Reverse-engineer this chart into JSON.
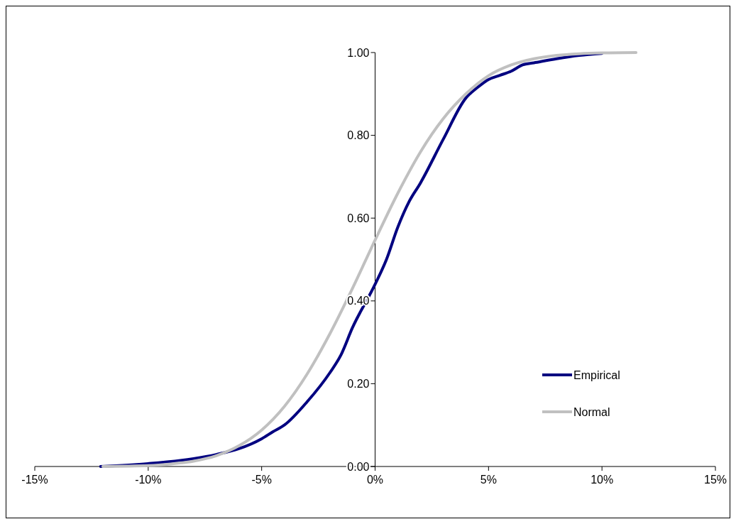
{
  "chart_data": {
    "type": "line",
    "xlim": [
      -15,
      15
    ],
    "ylim": [
      0,
      1
    ],
    "xticks": [
      {
        "value": -15,
        "label": "-15%"
      },
      {
        "value": -10,
        "label": "-10%"
      },
      {
        "value": -5,
        "label": "-5%"
      },
      {
        "value": 0,
        "label": "0%"
      },
      {
        "value": 5,
        "label": "5%"
      },
      {
        "value": 10,
        "label": "10%"
      },
      {
        "value": 15,
        "label": "15%"
      }
    ],
    "yticks": [
      {
        "value": 0,
        "label": "0.00"
      },
      {
        "value": 0.2,
        "label": "0.20"
      },
      {
        "value": 0.4,
        "label": "0.40"
      },
      {
        "value": 0.6,
        "label": "0.60"
      },
      {
        "value": 0.8,
        "label": "0.80"
      },
      {
        "value": 1,
        "label": "1.00"
      }
    ],
    "grid": false,
    "legend": "bottom right",
    "marker": "none",
    "line_style": "solid",
    "series": [
      {
        "name": "Empirical",
        "color": "#000080",
        "x": [
          -12.1,
          -10,
          -8,
          -7,
          -6,
          -5,
          -4.5,
          -4,
          -3,
          -2,
          -1.5,
          -1,
          0,
          0.5,
          1,
          1.5,
          2,
          3,
          4,
          4.5,
          5,
          5.5,
          6,
          6.5,
          7,
          8,
          9,
          10
        ],
        "values": [
          0,
          0.007,
          0.019,
          0.029,
          0.043,
          0.067,
          0.084,
          0.1,
          0.156,
          0.226,
          0.27,
          0.335,
          0.44,
          0.5,
          0.578,
          0.64,
          0.685,
          0.79,
          0.89,
          0.915,
          0.935,
          0.945,
          0.955,
          0.97,
          0.975,
          0.985,
          0.993,
          0.998
        ]
      },
      {
        "name": "Normal",
        "color": "#c0c0c0",
        "x": [
          -12,
          -10,
          -9,
          -8,
          -7,
          -6,
          -5,
          -4,
          -3,
          -2,
          -1,
          0,
          1,
          2,
          3,
          4,
          5,
          6,
          7,
          8,
          9,
          10,
          11.5
        ],
        "values": [
          0,
          0.002,
          0.006,
          0.013,
          0.026,
          0.05,
          0.088,
          0.145,
          0.223,
          0.32,
          0.43,
          0.547,
          0.66,
          0.76,
          0.84,
          0.9,
          0.944,
          0.97,
          0.985,
          0.993,
          0.997,
          0.999,
          1
        ]
      }
    ]
  }
}
